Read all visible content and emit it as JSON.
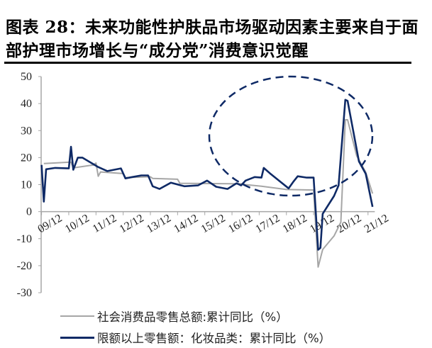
{
  "title": "图表 28：未来功能性护肤品市场驱动因素主要来自于面部护理市场增长与“成分党”消费意识觉醒",
  "chart_data": {
    "type": "line",
    "title": "图表 28：未来功能性护肤品市场驱动因素主要来自于面部护理市场增长与“成分党”消费意识觉醒",
    "ylim": [
      -30,
      50
    ],
    "yticks": [
      50,
      40,
      30,
      20,
      10,
      0,
      -10,
      -20,
      -30
    ],
    "xticks": [
      "09/12",
      "10/12",
      "11/12",
      "12/12",
      "13/12",
      "14/12",
      "15/12",
      "16/12",
      "17/12",
      "18/12",
      "19/12",
      "20/12",
      "21/12"
    ],
    "grid": false,
    "legend_position": "bottom",
    "annotation": "dashed-ellipse",
    "series": [
      {
        "name": "社会消费品零售总额:累计同比（%）",
        "color": "#a6a6a6",
        "points": [
          [
            "2010-01",
            17.8
          ],
          [
            "2010-12",
            18.3
          ],
          [
            "2011-01",
            18.3
          ],
          [
            "2011-02",
            16.2
          ],
          [
            "2011-11",
            17.3
          ],
          [
            "2011-12",
            18.0
          ],
          [
            "2012-01",
            13.1
          ],
          [
            "2012-02",
            14.7
          ],
          [
            "2012-12",
            14.1
          ],
          [
            "2013-01",
            12.6
          ],
          [
            "2013-12",
            12.9
          ],
          [
            "2014-01",
            12.3
          ],
          [
            "2014-12",
            12.0
          ],
          [
            "2015-01",
            10.5
          ],
          [
            "2017-04",
            10.3
          ],
          [
            "2017-06",
            10.0
          ],
          [
            "2018-01",
            9.4
          ],
          [
            "2018-12",
            8.2
          ],
          [
            "2019-12",
            8.0
          ],
          [
            "2020-02",
            -20.5
          ],
          [
            "2020-04",
            -14.0
          ],
          [
            "2020-09",
            -9.0
          ],
          [
            "2020-12",
            -3.9
          ],
          [
            "2021-02",
            34.0
          ],
          [
            "2021-03",
            34.0
          ],
          [
            "2021-07",
            20.7
          ],
          [
            "2021-11",
            14.6
          ],
          [
            "2022-02",
            6.7
          ]
        ]
      },
      {
        "name": "限额以上零售额：化妆品类：累计同比（%）",
        "color": "#0f2a66",
        "points": [
          [
            "2009-12",
            17.3
          ],
          [
            "2010-01",
            3.7
          ],
          [
            "2010-02",
            15.7
          ],
          [
            "2010-06",
            16.2
          ],
          [
            "2010-12",
            16.0
          ],
          [
            "2011-01",
            24.0
          ],
          [
            "2011-02",
            15.5
          ],
          [
            "2011-04",
            20.0
          ],
          [
            "2011-06",
            20.0
          ],
          [
            "2011-10",
            18.0
          ],
          [
            "2012-01",
            16.5
          ],
          [
            "2012-05",
            15.0
          ],
          [
            "2012-11",
            16.0
          ],
          [
            "2013-01",
            12.3
          ],
          [
            "2013-04",
            12.8
          ],
          [
            "2013-08",
            13.4
          ],
          [
            "2013-11",
            13.4
          ],
          [
            "2014-01",
            9.4
          ],
          [
            "2014-04",
            8.4
          ],
          [
            "2014-09",
            10.7
          ],
          [
            "2015-03",
            9.4
          ],
          [
            "2015-09",
            9.7
          ],
          [
            "2016-01",
            11.5
          ],
          [
            "2016-05",
            9.2
          ],
          [
            "2016-10",
            8.4
          ],
          [
            "2017-02",
            10.5
          ],
          [
            "2017-04",
            9.7
          ],
          [
            "2017-06",
            11.5
          ],
          [
            "2017-10",
            12.8
          ],
          [
            "2018-01",
            12.6
          ],
          [
            "2018-02",
            16.2
          ],
          [
            "2018-05",
            14.0
          ],
          [
            "2019-01",
            8.6
          ],
          [
            "2019-03",
            11.0
          ],
          [
            "2019-05",
            13.1
          ],
          [
            "2019-09",
            12.6
          ],
          [
            "2019-12",
            12.6
          ],
          [
            "2020-02",
            -14.1
          ],
          [
            "2020-03",
            -13.4
          ],
          [
            "2020-04",
            -0.8
          ],
          [
            "2020-09",
            5.8
          ],
          [
            "2020-11",
            9.7
          ],
          [
            "2021-02",
            41.4
          ],
          [
            "2021-03",
            41.0
          ],
          [
            "2021-08",
            18.6
          ],
          [
            "2021-11",
            14.0
          ],
          [
            "2022-02",
            1.8
          ]
        ]
      }
    ]
  }
}
